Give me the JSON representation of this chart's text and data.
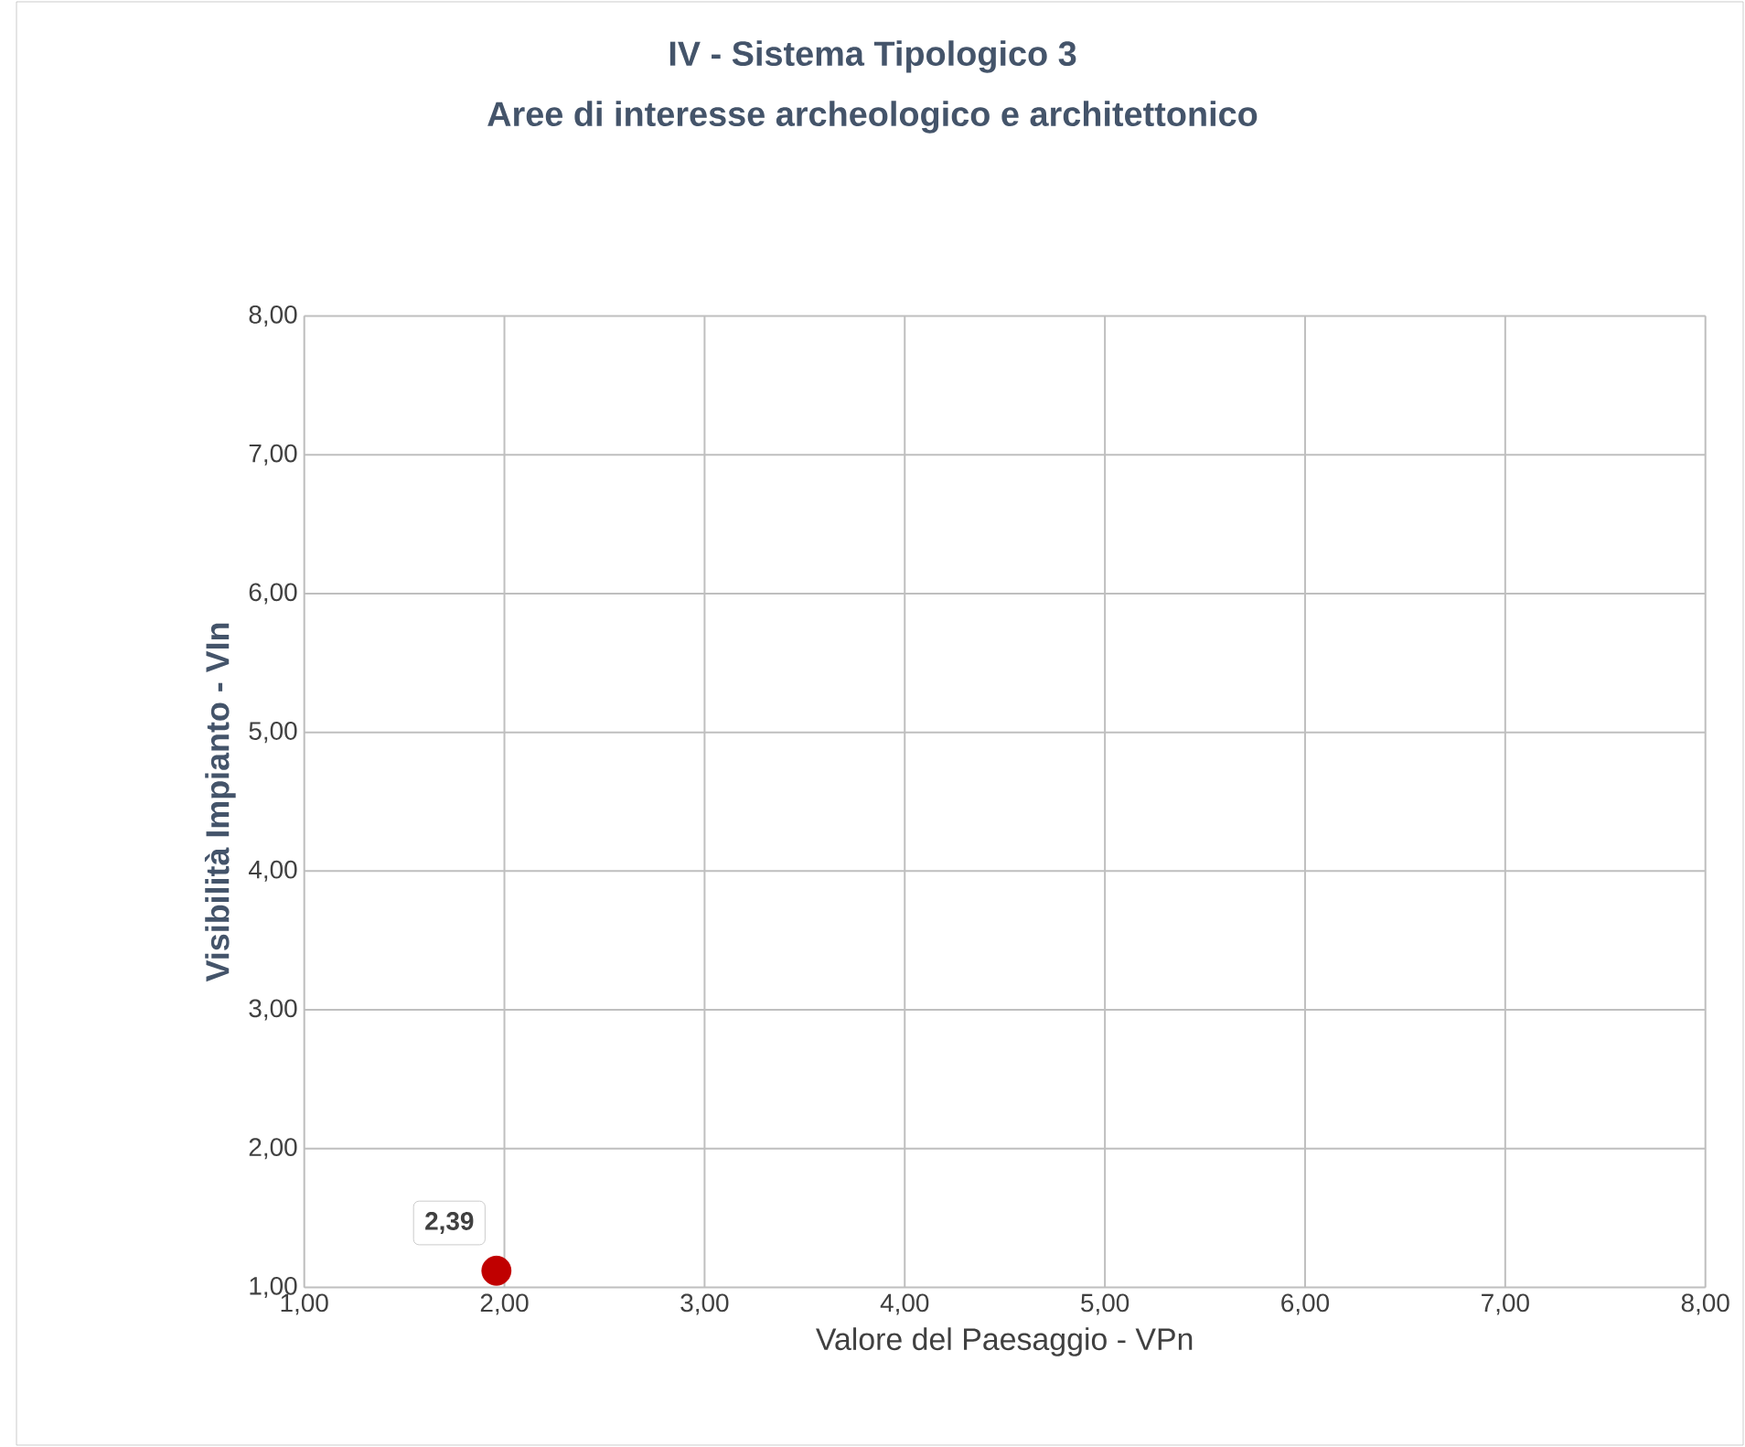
{
  "chart_data": {
    "type": "scatter",
    "title": "IV - Sistema Tipologico 3",
    "subtitle": "Aree di interesse archeologico e architettonico",
    "xlabel": "Valore del Paesaggio - VPn",
    "ylabel": "Visibilità Impianto - VIn",
    "x": [
      1.96
    ],
    "values": [
      1.12
    ],
    "color": "#c00000",
    "marker": "circle",
    "annotations": [
      {
        "text": "2,39",
        "x": 1.96,
        "y": 1.12
      }
    ],
    "xlim": [
      1,
      8
    ],
    "ylim": [
      1,
      8
    ],
    "xticks": [
      {
        "value": 1,
        "label": "1,00"
      },
      {
        "value": 2,
        "label": "2,00"
      },
      {
        "value": 3,
        "label": "3,00"
      },
      {
        "value": 4,
        "label": "4,00"
      },
      {
        "value": 5,
        "label": "5,00"
      },
      {
        "value": 6,
        "label": "6,00"
      },
      {
        "value": 7,
        "label": "7,00"
      },
      {
        "value": 8,
        "label": "8,00"
      }
    ],
    "yticks": [
      {
        "value": 1,
        "label": "1,00"
      },
      {
        "value": 2,
        "label": "2,00"
      },
      {
        "value": 3,
        "label": "3,00"
      },
      {
        "value": 4,
        "label": "4,00"
      },
      {
        "value": 5,
        "label": "5,00"
      },
      {
        "value": 6,
        "label": "6,00"
      },
      {
        "value": 7,
        "label": "7,00"
      },
      {
        "value": 8,
        "label": "8,00"
      }
    ],
    "grid": true
  }
}
